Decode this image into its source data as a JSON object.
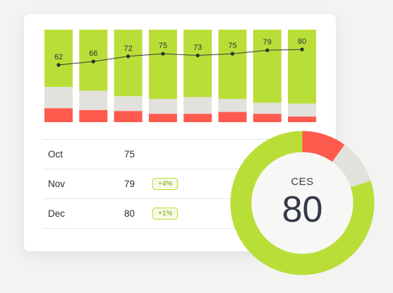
{
  "colors": {
    "green": "#bade38",
    "gray": "#e2e1dc",
    "red": "#fe5a4e",
    "donut_inner": "#f7f7f5"
  },
  "chart_data": [
    {
      "type": "bar",
      "description_ignore": "",
      "categories": [
        "",
        "",
        "",
        "",
        "",
        "",
        "",
        ""
      ],
      "series": [
        {
          "values": [
            62,
            66,
            72,
            75,
            73,
            75,
            79,
            80
          ]
        },
        {
          "values": [
            23,
            21,
            16,
            16,
            18,
            14,
            12,
            14
          ]
        },
        {
          "values": [
            15,
            13,
            12,
            9,
            9,
            11,
            9,
            6
          ]
        }
      ],
      "line_values": [
        62,
        66,
        72,
        75,
        73,
        75,
        79,
        80
      ],
      "ylim": [
        0,
        100
      ]
    },
    {
      "type": "pie",
      "label": "CES",
      "value": "80",
      "slices": [
        80,
        10,
        10
      ]
    }
  ],
  "table": {
    "rows": [
      {
        "month": "Oct",
        "score": "75",
        "change": ""
      },
      {
        "month": "Nov",
        "score": "79",
        "change": "+4%"
      },
      {
        "month": "Dec",
        "score": "80",
        "change": "+1%"
      }
    ]
  }
}
